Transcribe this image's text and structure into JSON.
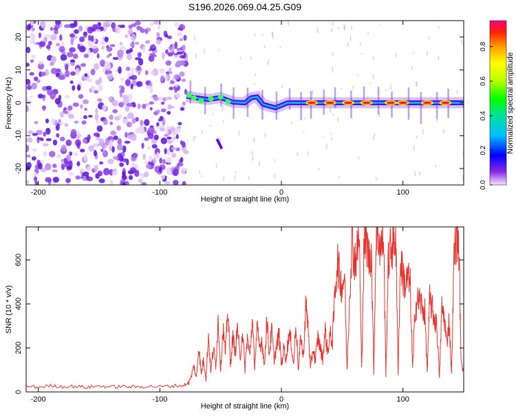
{
  "chart_data": [
    {
      "type": "heatmap",
      "title": "S196.2026.069.04.25.G09",
      "xlabel": "Height of straight line (km)",
      "ylabel": "Frequency (Hz)",
      "xlim": [
        -210,
        150
      ],
      "ylim": [
        -25,
        25
      ],
      "xticks": [
        -200,
        -100,
        0,
        100
      ],
      "yticks": [
        -20,
        -10,
        0,
        10,
        20
      ],
      "colorbar": {
        "label": "Normalized spectral amplitude",
        "range": [
          0.0,
          0.95
        ],
        "ticks": [
          0.0,
          0.2,
          0.4,
          0.6,
          0.8
        ],
        "colormap": "rainbow (purple to red)",
        "position": "right"
      },
      "noise_region": [
        -210,
        -78
      ],
      "ridge_center_hz": [
        [
          -78,
          2
        ],
        [
          -70,
          1.5
        ],
        [
          -60,
          1
        ],
        [
          -50,
          1.6
        ],
        [
          -40,
          0.2
        ],
        [
          -30,
          0
        ],
        [
          -25,
          1.5
        ],
        [
          -20,
          1.8
        ],
        [
          -15,
          -0.5
        ],
        [
          -5,
          -1.5
        ],
        [
          0,
          -0.8
        ],
        [
          5,
          0
        ],
        [
          10,
          0
        ],
        [
          150,
          0
        ]
      ],
      "ridge_peak_positions_km": [
        25,
        40,
        55,
        70,
        90,
        100,
        120,
        135
      ],
      "ridge_color_fallback": "#4a00ff"
    },
    {
      "type": "line",
      "xlabel": "Height of straight line (km)",
      "ylabel": "SNR (10 * v/v)",
      "xlim": [
        -210,
        150
      ],
      "ylim": [
        0,
        750
      ],
      "xticks": [
        -200,
        -100,
        0,
        100
      ],
      "yticks": [
        0,
        200,
        400,
        600
      ],
      "color": "#e8322c",
      "series": [
        {
          "name": "SNR",
          "x": [
            -210,
            -200,
            -190,
            -180,
            -170,
            -160,
            -150,
            -140,
            -130,
            -120,
            -110,
            -100,
            -90,
            -80,
            -75,
            -72,
            -70,
            -68,
            -66,
            -64,
            -62,
            -60,
            -58,
            -56,
            -54,
            -52,
            -50,
            -48,
            -46,
            -44,
            -42,
            -40,
            -38,
            -36,
            -34,
            -32,
            -30,
            -28,
            -26,
            -24,
            -22,
            -20,
            -18,
            -16,
            -14,
            -12,
            -10,
            -8,
            -6,
            -4,
            -2,
            0,
            2,
            4,
            6,
            8,
            10,
            12,
            14,
            16,
            18,
            20,
            22,
            24,
            26,
            28,
            30,
            32,
            34,
            36,
            38,
            40,
            42,
            44,
            46,
            48,
            50,
            52,
            54,
            56,
            58,
            60,
            62,
            64,
            66,
            68,
            70,
            72,
            74,
            76,
            78,
            80,
            82,
            84,
            86,
            88,
            90,
            92,
            94,
            96,
            98,
            100,
            102,
            104,
            106,
            108,
            110,
            112,
            114,
            116,
            118,
            120,
            122,
            124,
            126,
            128,
            130,
            132,
            134,
            136,
            138,
            140,
            142,
            144,
            146,
            148,
            150
          ],
          "values": [
            25,
            22,
            28,
            24,
            26,
            21,
            27,
            23,
            25,
            22,
            26,
            24,
            27,
            30,
            50,
            120,
            60,
            210,
            80,
            150,
            60,
            260,
            90,
            200,
            120,
            330,
            100,
            290,
            170,
            385,
            120,
            250,
            180,
            300,
            140,
            280,
            100,
            250,
            160,
            330,
            120,
            290,
            200,
            240,
            110,
            340,
            170,
            280,
            150,
            200,
            270,
            120,
            200,
            150,
            260,
            230,
            120,
            320,
            90,
            260,
            150,
            390,
            300,
            100,
            200,
            140,
            250,
            200,
            150,
            280,
            180,
            260,
            230,
            450,
            600,
            520,
            480,
            540,
            90,
            420,
            700,
            600,
            620,
            720,
            100,
            680,
            690,
            600,
            650,
            90,
            730,
            700,
            650,
            720,
            80,
            600,
            650,
            680,
            720,
            90,
            600,
            530,
            480,
            520,
            480,
            100,
            380,
            410,
            420,
            380,
            360,
            90,
            420,
            380,
            330,
            300,
            60,
            380,
            340,
            220,
            330,
            80,
            600,
            730,
            660,
            120,
            100
          ]
        }
      ]
    }
  ]
}
